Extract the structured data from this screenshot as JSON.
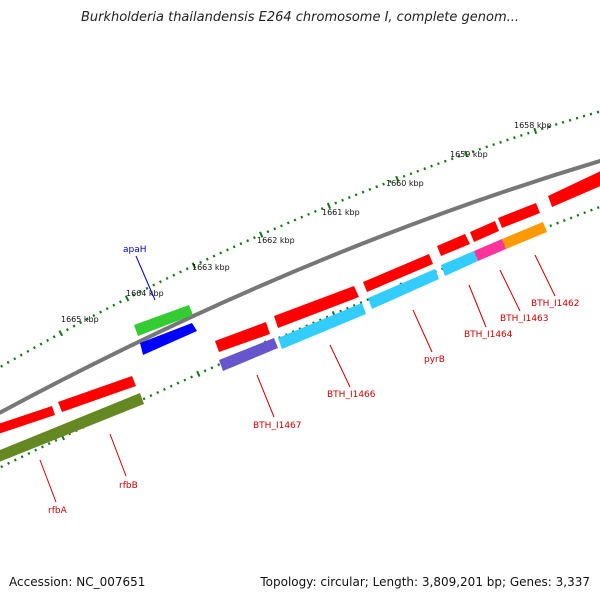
{
  "title": "Burkholderia thailandensis E264 chromosome I, complete genom...",
  "footer": {
    "accession": "Accession: NC_007651",
    "info": "Topology: circular; Length: 3,809,201 bp; Genes: 3,337"
  },
  "scale_ticks": [
    {
      "label": "1658 kbp"
    },
    {
      "label": "1659 kbp"
    },
    {
      "label": "1660 kbp"
    },
    {
      "label": "1661 kbp"
    },
    {
      "label": "1662 kbp"
    },
    {
      "label": "1663 kbp"
    },
    {
      "label": "1664 kbp"
    },
    {
      "label": "1665 kbp"
    }
  ],
  "gene_labels": [
    {
      "name": "apaH",
      "color": "#0000cc"
    },
    {
      "name": "rfbA",
      "color": "#cc0000"
    },
    {
      "name": "rfbB",
      "color": "#cc0000"
    },
    {
      "name": "BTH_I1467",
      "color": "#cc0000"
    },
    {
      "name": "BTH_I1466",
      "color": "#cc0000"
    },
    {
      "name": "pyrB",
      "color": "#cc0000"
    },
    {
      "name": "BTH_I1464",
      "color": "#cc0000"
    },
    {
      "name": "BTH_I1463",
      "color": "#cc0000"
    },
    {
      "name": "BTH_I1462",
      "color": "#cc0000"
    }
  ],
  "feature_colors": {
    "gene": "#ff0000",
    "cds_blue": "#0000ff",
    "cds_green": "#33cc33",
    "cds_olive": "#668822",
    "cds_sky": "#33ccff",
    "cds_purple": "#6655cc",
    "cds_pink": "#ff3399",
    "cds_orange": "#ff9900",
    "backbone": "#777777",
    "tick": "#117711"
  }
}
